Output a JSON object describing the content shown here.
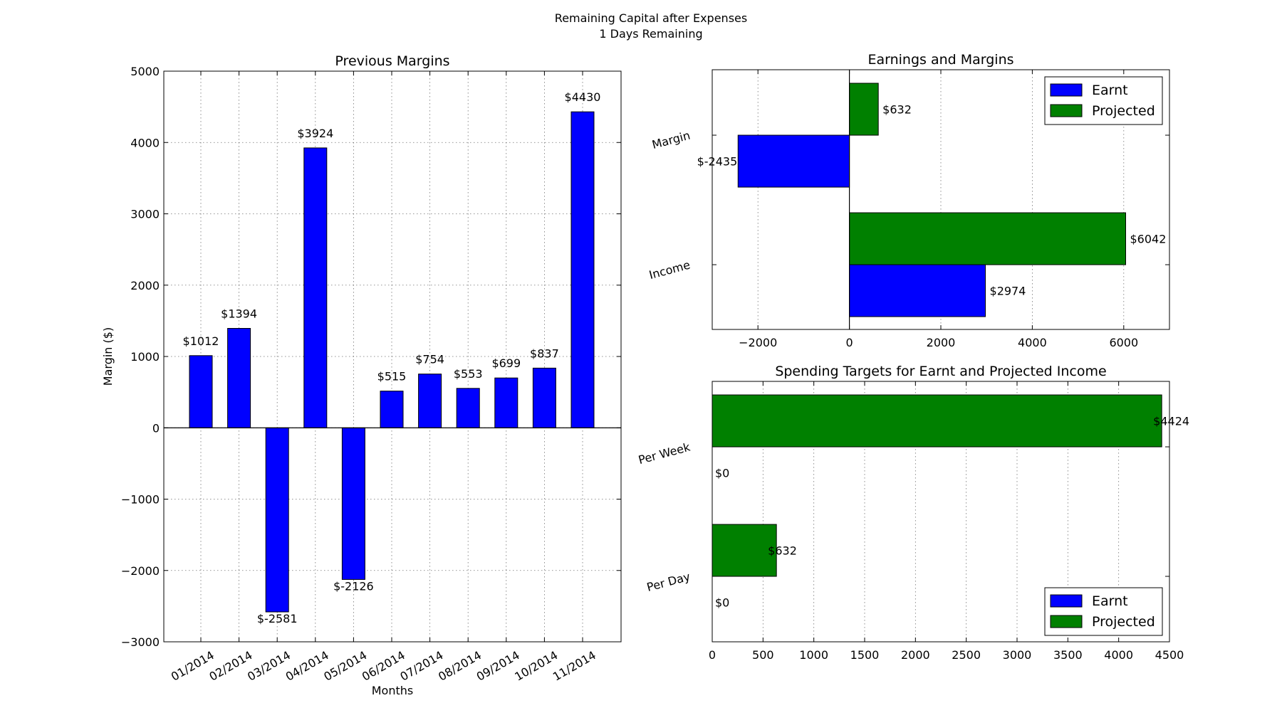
{
  "figure": {
    "suptitle_line1": "Remaining Capital after Expenses",
    "suptitle_line2": "1 Days Remaining"
  },
  "colors": {
    "earnt": "#0000ff",
    "projected": "#008000"
  },
  "chart_data": [
    {
      "id": "previous_margins",
      "type": "bar",
      "title": "Previous Margins",
      "xlabel": "Months",
      "ylabel": "Margin ($)",
      "categories": [
        "01/2014",
        "02/2014",
        "03/2014",
        "04/2014",
        "05/2014",
        "06/2014",
        "07/2014",
        "08/2014",
        "09/2014",
        "10/2014",
        "11/2014"
      ],
      "values": [
        1012,
        1394,
        -2581,
        3924,
        -2126,
        515,
        754,
        553,
        699,
        837,
        4430
      ],
      "value_labels": [
        "$1012",
        "$1394",
        "$-2581",
        "$3924",
        "$-2126",
        "$515",
        "$754",
        "$553",
        "$699",
        "$837",
        "$4430"
      ],
      "ylim": [
        -3000,
        5000
      ],
      "yticks": [
        -3000,
        -2000,
        -1000,
        0,
        1000,
        2000,
        3000,
        4000,
        5000
      ],
      "ytick_labels": [
        "−3000",
        "−2000",
        "−1000",
        "0",
        "1000",
        "2000",
        "3000",
        "4000",
        "5000"
      ],
      "grid": true
    },
    {
      "id": "earnings_and_margins",
      "type": "barh",
      "title": "Earnings and Margins",
      "categories": [
        "Income",
        "Margin"
      ],
      "series": [
        {
          "name": "Earnt",
          "values": [
            2974,
            -2435
          ],
          "value_labels": [
            "$2974",
            "$-2435"
          ]
        },
        {
          "name": "Projected",
          "values": [
            6042,
            632
          ],
          "value_labels": [
            "$6042",
            "$632"
          ]
        }
      ],
      "xlim": [
        -3000,
        7000
      ],
      "xticks": [
        -2000,
        0,
        2000,
        4000,
        6000
      ],
      "xtick_labels": [
        "−2000",
        "0",
        "2000",
        "4000",
        "6000"
      ],
      "legend": [
        "Earnt",
        "Projected"
      ],
      "legend_position": "upper right",
      "grid": true
    },
    {
      "id": "spending_targets",
      "type": "barh",
      "title": "Spending Targets for Earnt and Projected Income",
      "categories": [
        "Per Day",
        "Per Week"
      ],
      "series": [
        {
          "name": "Earnt",
          "values": [
            0,
            0
          ],
          "value_labels": [
            "$0",
            "$0"
          ]
        },
        {
          "name": "Projected",
          "values": [
            632,
            4424
          ],
          "value_labels": [
            "$632",
            "$4424"
          ]
        }
      ],
      "xlim": [
        0,
        4500
      ],
      "xticks": [
        0,
        500,
        1000,
        1500,
        2000,
        2500,
        3000,
        3500,
        4000,
        4500
      ],
      "xtick_labels": [
        "0",
        "500",
        "1000",
        "1500",
        "2000",
        "2500",
        "3000",
        "3500",
        "4000",
        "4500"
      ],
      "legend": [
        "Earnt",
        "Projected"
      ],
      "legend_position": "lower right",
      "grid": true
    }
  ]
}
